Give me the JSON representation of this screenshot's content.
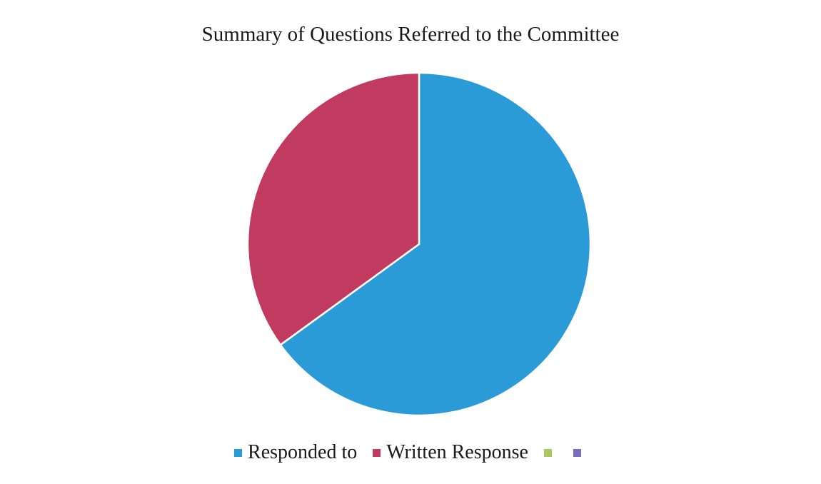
{
  "chart_data": {
    "type": "pie",
    "title": "Summary of Questions Referred to the Committee",
    "legend_position": "bottom",
    "categories": [
      "Responded to",
      "Written Response",
      "",
      ""
    ],
    "values": [
      65,
      35,
      0,
      0
    ],
    "colors": [
      "#2a9bd6",
      "#c13a5f",
      "#a9c95a",
      "#7a6cc0"
    ]
  }
}
